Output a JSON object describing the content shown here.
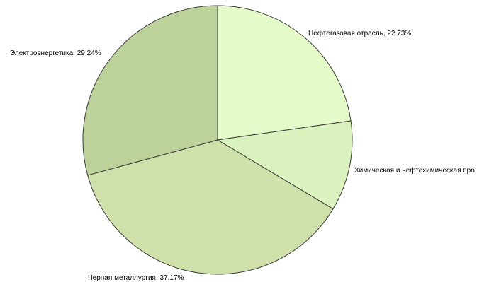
{
  "chart_data": {
    "type": "pie",
    "title": "",
    "slices": [
      {
        "label": "Нефтегазовая отрасль, 22.73%",
        "value": 22.73,
        "color": "#e4fbc9"
      },
      {
        "label": "Химическая и нефтехимическая про.",
        "value": 10.86,
        "color": "#daf2bd"
      },
      {
        "label": "Черная металлургия, 37.17%",
        "value": 37.17,
        "color": "#cfe0ab"
      },
      {
        "label": "Электроэнергетика, 29.24%",
        "value": 29.24,
        "color": "#bdd29b"
      }
    ],
    "edge_color": "#3b3b3b"
  }
}
